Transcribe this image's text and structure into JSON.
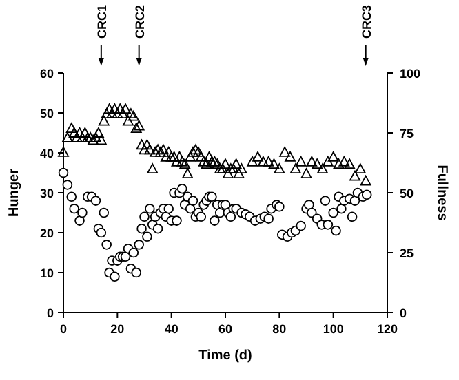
{
  "chart_data": {
    "type": "scatter",
    "xlabel": "Time (d)",
    "ylabel": "Hunger",
    "y2label": "Fullness",
    "xlim": [
      0,
      120
    ],
    "xticks": [
      0,
      20,
      40,
      60,
      80,
      100,
      120
    ],
    "ylim": [
      0,
      60
    ],
    "yticks": [
      0,
      10,
      20,
      30,
      40,
      50,
      60
    ],
    "y2lim": [
      0,
      100
    ],
    "y2ticks": [
      0,
      25,
      50,
      75,
      100
    ],
    "annotations": [
      {
        "text": "CRC1",
        "x": 14
      },
      {
        "text": "CRC2",
        "x": 28
      },
      {
        "text": "CRC3",
        "x": 112
      }
    ],
    "series": [
      {
        "marker": "circle",
        "color": "#000000",
        "x": [
          0,
          1.5,
          3,
          4,
          6,
          7,
          9,
          10.5,
          12,
          13,
          14,
          15,
          16,
          17,
          18,
          19,
          20,
          21,
          22,
          23,
          24,
          25,
          26,
          27,
          28,
          29,
          30,
          31,
          32,
          33,
          34,
          35,
          36,
          37,
          38,
          39,
          40,
          41,
          42,
          43,
          44,
          45,
          46,
          47,
          48,
          49,
          50,
          51,
          52,
          53,
          54,
          55,
          56,
          57,
          58,
          59,
          60,
          61,
          62,
          63,
          64,
          66,
          67.5,
          69,
          71,
          73,
          74.5,
          76,
          77,
          79,
          80,
          81,
          83,
          84.6,
          86,
          88,
          90,
          91,
          92,
          94,
          95.7,
          97,
          98,
          100,
          101,
          102,
          103,
          104,
          106,
          107,
          108,
          109,
          111,
          112.4
        ],
        "values": [
          35,
          32,
          29,
          26,
          23,
          25,
          29,
          29,
          28,
          21,
          20,
          25,
          17,
          10,
          13,
          9,
          13,
          14,
          14,
          14,
          16,
          11,
          15,
          10,
          17,
          21,
          24,
          19,
          26,
          22,
          24,
          21,
          25,
          26,
          24,
          26,
          23,
          30,
          23,
          30,
          31,
          27,
          29,
          26,
          28,
          24,
          25,
          24,
          27,
          28,
          29,
          29,
          23,
          27,
          25,
          27,
          27,
          25,
          24,
          26,
          26,
          25,
          24.6,
          24,
          23,
          23.5,
          24,
          23.5,
          26,
          27,
          26.5,
          19.5,
          19,
          20,
          20.5,
          21.7,
          26,
          27,
          25,
          23.5,
          22,
          28,
          22,
          25,
          20.5,
          29,
          26,
          28,
          28.5,
          24,
          28,
          30,
          29,
          29.5
        ]
      },
      {
        "marker": "triangle",
        "axis": "y2",
        "color": "#000000",
        "x": [
          0,
          1.5,
          3,
          4,
          5,
          6,
          7,
          8,
          9,
          10,
          11,
          12,
          13,
          14,
          15,
          16,
          17,
          18,
          19,
          20,
          21,
          22,
          23,
          24,
          25,
          26,
          27,
          28,
          29,
          30,
          31,
          32,
          33,
          34,
          35,
          36,
          37,
          38,
          39,
          40,
          41,
          42,
          43,
          44,
          45,
          46,
          47,
          48,
          49,
          50,
          51,
          52,
          53,
          54,
          55,
          56,
          57,
          58,
          59,
          60,
          61,
          62,
          63,
          64,
          65,
          66,
          70,
          72,
          74,
          76,
          78,
          80,
          82,
          84,
          86,
          88,
          90,
          92,
          94,
          96,
          98,
          100,
          102,
          104,
          106,
          108,
          110,
          112
        ],
        "values": [
          67,
          73,
          77,
          75,
          73,
          75,
          73,
          75,
          73,
          73,
          72,
          73,
          75,
          72,
          80,
          83,
          85,
          83,
          85,
          83,
          85,
          83,
          85,
          80,
          83,
          82,
          77,
          78,
          70,
          68,
          70,
          68,
          60,
          67,
          68,
          67,
          68,
          65,
          67,
          65,
          65,
          63,
          65,
          63,
          62,
          58,
          65,
          67,
          68,
          67,
          65,
          63,
          62,
          65,
          63,
          63,
          62,
          60,
          60,
          62,
          58,
          60,
          60,
          62,
          58,
          60,
          63,
          65,
          63,
          63,
          62,
          60,
          67,
          65,
          60,
          63,
          58,
          63,
          62,
          60,
          63,
          65,
          62,
          63,
          62,
          57,
          60,
          55
        ]
      }
    ]
  }
}
